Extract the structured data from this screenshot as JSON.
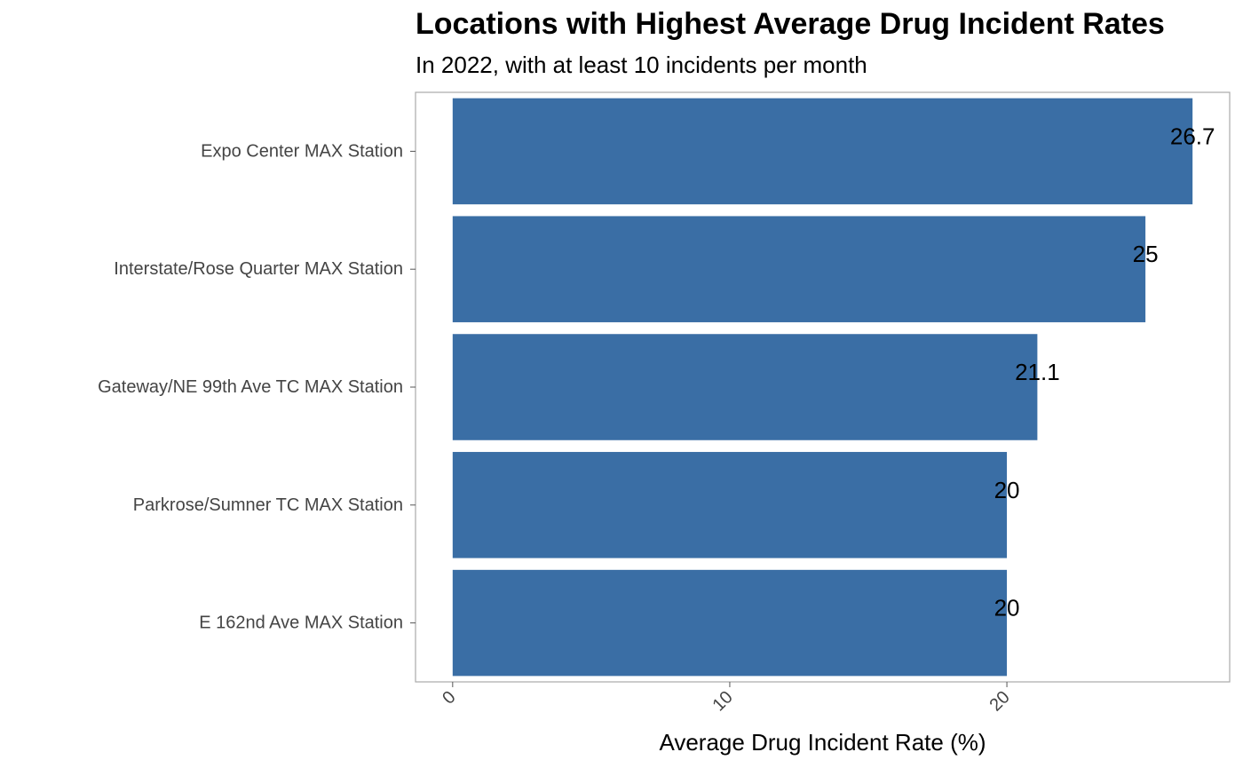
{
  "chart_data": {
    "type": "bar",
    "orientation": "horizontal",
    "title": "Locations with Highest Average Drug Incident Rates",
    "subtitle": "In 2022, with at least 10 incidents per month",
    "xlabel": "Average Drug Incident Rate (%)",
    "ylabel": "",
    "categories": [
      "Expo Center MAX Station",
      "Interstate/Rose Quarter MAX Station",
      "Gateway/NE 99th Ave TC MAX Station",
      "Parkrose/Sumner TC MAX Station",
      "E 162nd Ave MAX Station"
    ],
    "values": [
      26.7,
      25,
      21.1,
      20,
      20
    ],
    "data_labels": [
      "26.7",
      "25",
      "21.1",
      "20",
      "20"
    ],
    "xticks": [
      0,
      10,
      20
    ],
    "xtick_labels": [
      "0",
      "10",
      "20"
    ],
    "xlim": [
      -1.34,
      28.04
    ],
    "grid": false,
    "bar_color": "#3a6ea5",
    "panel_border_color": "#aaaaaa"
  }
}
